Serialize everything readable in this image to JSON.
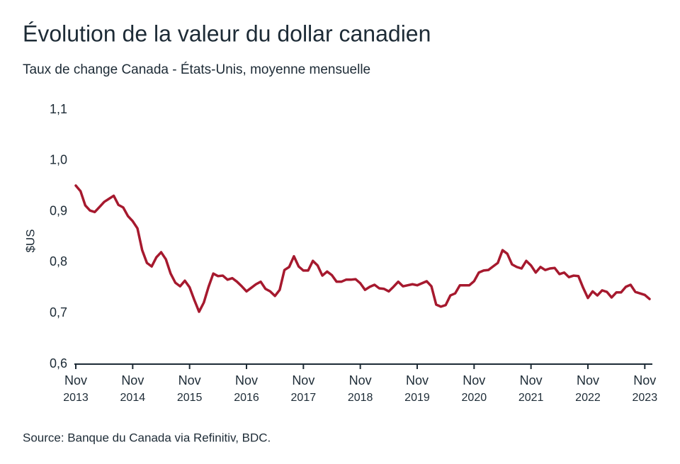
{
  "chart_data": {
    "type": "line",
    "title": "Évolution de la valeur du dollar canadien",
    "subtitle": "Taux de change Canada - États-Unis, moyenne mensuelle",
    "ylabel": "$US",
    "source": "Source: Banque du Canada via Refinitiv, BDC.",
    "x": [
      "2013-11",
      "2013-12",
      "2014-01",
      "2014-02",
      "2014-03",
      "2014-04",
      "2014-05",
      "2014-06",
      "2014-07",
      "2014-08",
      "2014-09",
      "2014-10",
      "2014-11",
      "2014-12",
      "2015-01",
      "2015-02",
      "2015-03",
      "2015-04",
      "2015-05",
      "2015-06",
      "2015-07",
      "2015-08",
      "2015-09",
      "2015-10",
      "2015-11",
      "2015-12",
      "2016-01",
      "2016-02",
      "2016-03",
      "2016-04",
      "2016-05",
      "2016-06",
      "2016-07",
      "2016-08",
      "2016-09",
      "2016-10",
      "2016-11",
      "2016-12",
      "2017-01",
      "2017-02",
      "2017-03",
      "2017-04",
      "2017-05",
      "2017-06",
      "2017-07",
      "2017-08",
      "2017-09",
      "2017-10",
      "2017-11",
      "2017-12",
      "2018-01",
      "2018-02",
      "2018-03",
      "2018-04",
      "2018-05",
      "2018-06",
      "2018-07",
      "2018-08",
      "2018-09",
      "2018-10",
      "2018-11",
      "2018-12",
      "2019-01",
      "2019-02",
      "2019-03",
      "2019-04",
      "2019-05",
      "2019-06",
      "2019-07",
      "2019-08",
      "2019-09",
      "2019-10",
      "2019-11",
      "2019-12",
      "2020-01",
      "2020-02",
      "2020-03",
      "2020-04",
      "2020-05",
      "2020-06",
      "2020-07",
      "2020-08",
      "2020-09",
      "2020-10",
      "2020-11",
      "2020-12",
      "2021-01",
      "2021-02",
      "2021-03",
      "2021-04",
      "2021-05",
      "2021-06",
      "2021-07",
      "2021-08",
      "2021-09",
      "2021-10",
      "2021-11",
      "2021-12",
      "2022-01",
      "2022-02",
      "2022-03",
      "2022-04",
      "2022-05",
      "2022-06",
      "2022-07",
      "2022-08",
      "2022-09",
      "2022-10",
      "2022-11",
      "2022-12",
      "2023-01",
      "2023-02",
      "2023-03",
      "2023-04",
      "2023-05",
      "2023-06",
      "2023-07",
      "2023-08",
      "2023-09",
      "2023-10",
      "2023-11",
      "2023-12"
    ],
    "series": [
      {
        "name": "$US",
        "color": "#a6192e",
        "values": [
          0.951,
          0.94,
          0.912,
          0.902,
          0.899,
          0.909,
          0.919,
          0.925,
          0.931,
          0.913,
          0.908,
          0.891,
          0.881,
          0.867,
          0.824,
          0.799,
          0.792,
          0.81,
          0.82,
          0.806,
          0.778,
          0.76,
          0.753,
          0.764,
          0.751,
          0.726,
          0.703,
          0.721,
          0.752,
          0.778,
          0.773,
          0.774,
          0.766,
          0.769,
          0.762,
          0.753,
          0.743,
          0.75,
          0.757,
          0.762,
          0.748,
          0.743,
          0.734,
          0.746,
          0.785,
          0.791,
          0.812,
          0.792,
          0.784,
          0.784,
          0.803,
          0.794,
          0.774,
          0.782,
          0.775,
          0.762,
          0.762,
          0.766,
          0.766,
          0.767,
          0.759,
          0.746,
          0.752,
          0.756,
          0.749,
          0.748,
          0.743,
          0.752,
          0.762,
          0.753,
          0.755,
          0.757,
          0.755,
          0.759,
          0.763,
          0.753,
          0.717,
          0.713,
          0.716,
          0.735,
          0.739,
          0.755,
          0.755,
          0.755,
          0.763,
          0.78,
          0.784,
          0.785,
          0.792,
          0.799,
          0.824,
          0.817,
          0.796,
          0.791,
          0.788,
          0.803,
          0.794,
          0.78,
          0.791,
          0.785,
          0.788,
          0.789,
          0.777,
          0.78,
          0.771,
          0.774,
          0.773,
          0.75,
          0.73,
          0.743,
          0.735,
          0.745,
          0.742,
          0.731,
          0.741,
          0.741,
          0.752,
          0.756,
          0.742,
          0.739,
          0.736,
          0.728
        ]
      }
    ],
    "xlim": [
      "2013-11",
      "2023-12"
    ],
    "xticks": [
      {
        "value": "2013-11",
        "label": "Nov 2013"
      },
      {
        "value": "2014-11",
        "label": "Nov 2014"
      },
      {
        "value": "2015-11",
        "label": "Nov 2015"
      },
      {
        "value": "2016-11",
        "label": "Nov 2016"
      },
      {
        "value": "2017-11",
        "label": "Nov 2017"
      },
      {
        "value": "2018-11",
        "label": "Nov 2018"
      },
      {
        "value": "2019-11",
        "label": "Nov 2019"
      },
      {
        "value": "2020-11",
        "label": "Nov 2020"
      },
      {
        "value": "2021-11",
        "label": "Nov 2021"
      },
      {
        "value": "2022-11",
        "label": "Nov 2022"
      },
      {
        "value": "2023-11",
        "label": "Nov 2023"
      }
    ],
    "ylim": [
      0.6,
      1.1
    ],
    "yticks": [
      {
        "value": 0.6,
        "label": "0,6"
      },
      {
        "value": 0.7,
        "label": "0,7"
      },
      {
        "value": 0.8,
        "label": "0,8"
      },
      {
        "value": 0.9,
        "label": "0,9"
      },
      {
        "value": 1.0,
        "label": "1,0"
      },
      {
        "value": 1.1,
        "label": "1,1"
      }
    ],
    "grid": false
  }
}
